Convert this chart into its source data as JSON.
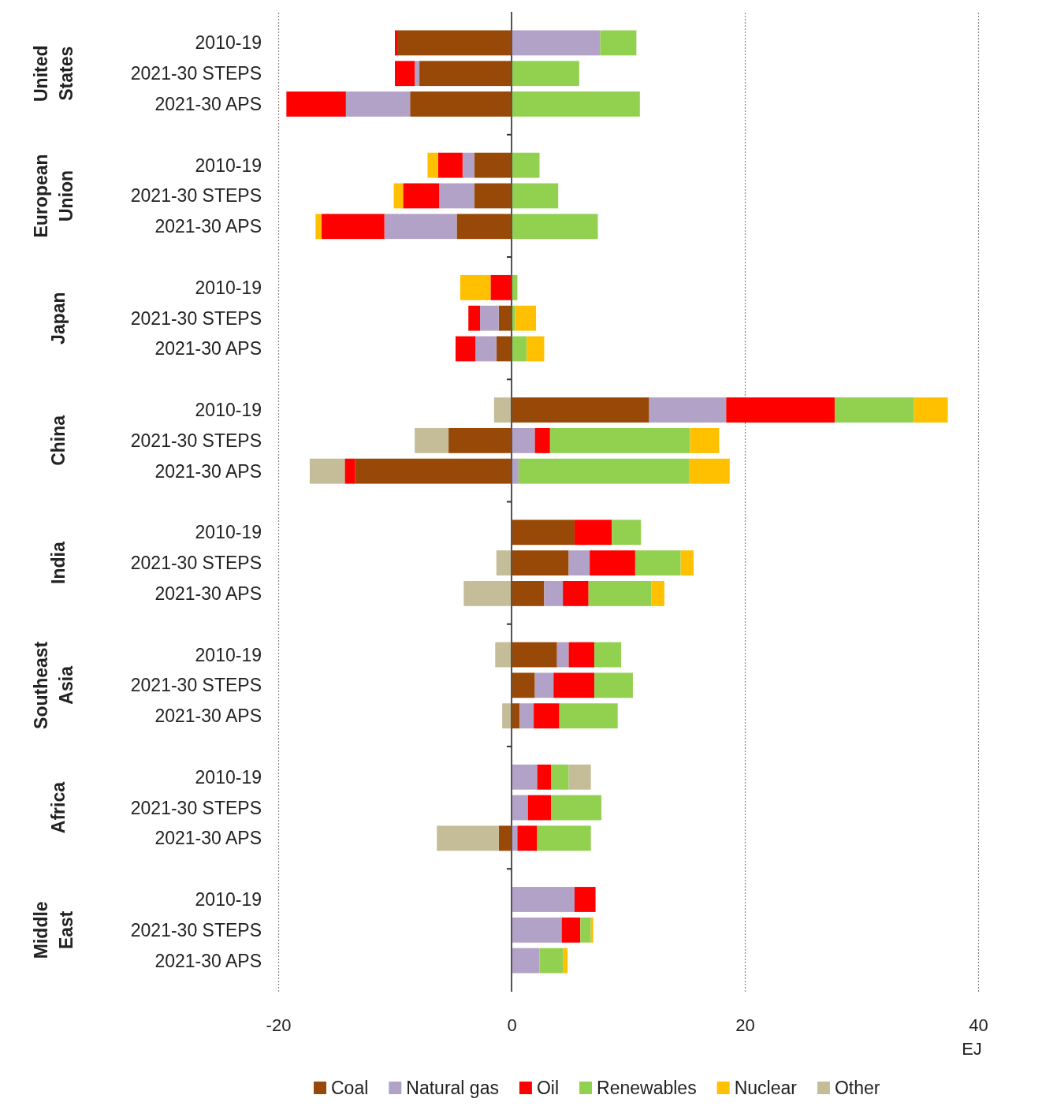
{
  "chart_data": {
    "type": "bar",
    "orientation": "horizontal",
    "stacked": true,
    "categories": [
      "2010-19",
      "2021-30 STEPS",
      "2021-30 APS",
      "2010-19",
      "2021-30 STEPS",
      "2021-30 APS",
      "2010-19",
      "2021-30 STEPS",
      "2021-30 APS",
      "2010-19",
      "2021-30 STEPS",
      "2021-30 APS",
      "2010-19",
      "2021-30 STEPS",
      "2021-30 APS",
      "2010-19",
      "2021-30 STEPS",
      "2021-30 APS",
      "2010-19",
      "2021-30 STEPS",
      "2021-30 APS",
      "2010-19",
      "2021-30 STEPS",
      "2021-30 APS"
    ],
    "series": [
      {
        "name": "Coal",
        "color": "#984807",
        "values": [
          -9.8,
          -7.9,
          -8.7,
          -3.2,
          -3.2,
          -4.7,
          null,
          -1.1,
          -1.3,
          11.8,
          -5.4,
          -13.4,
          5.4,
          4.9,
          2.8,
          3.9,
          2.0,
          0.7,
          null,
          null,
          -1.1,
          null,
          null,
          null
        ]
      },
      {
        "name": "Natural gas",
        "color": "#b3a2c7",
        "values": [
          7.6,
          -0.4,
          -5.5,
          -1.0,
          -3.0,
          -6.2,
          null,
          -1.6,
          -1.8,
          6.6,
          2.0,
          0.6,
          null,
          1.8,
          1.6,
          1.0,
          1.6,
          1.2,
          2.2,
          1.4,
          0.5,
          5.4,
          4.3,
          2.4
        ]
      },
      {
        "name": "Oil",
        "color": "#ff0000",
        "values": [
          -0.2,
          -1.7,
          -5.1,
          -2.1,
          -3.1,
          -5.4,
          -1.8,
          -1.0,
          -1.7,
          9.3,
          1.3,
          -0.9,
          3.2,
          3.9,
          2.2,
          2.2,
          3.5,
          2.2,
          1.2,
          2.0,
          1.7,
          1.8,
          1.6,
          null
        ]
      },
      {
        "name": "Renewables",
        "color": "#92d050",
        "values": [
          3.1,
          5.8,
          11.0,
          2.4,
          4.0,
          7.4,
          0.5,
          0.3,
          1.3,
          6.8,
          12.0,
          14.6,
          2.5,
          3.9,
          5.4,
          2.3,
          3.3,
          5.0,
          1.5,
          4.3,
          4.6,
          null,
          0.9,
          2.0
        ]
      },
      {
        "name": "Nuclear",
        "color": "#ffc000",
        "values": [
          null,
          null,
          null,
          -0.9,
          -0.8,
          -0.5,
          -2.6,
          1.8,
          1.5,
          2.9,
          2.5,
          3.5,
          null,
          1.1,
          1.1,
          null,
          null,
          null,
          null,
          null,
          null,
          null,
          0.2,
          0.4
        ]
      },
      {
        "name": "Other",
        "color": "#c4bd97",
        "values": [
          null,
          null,
          null,
          null,
          null,
          null,
          null,
          null,
          null,
          -1.5,
          -2.9,
          -3.0,
          null,
          -1.3,
          -4.1,
          -1.4,
          null,
          -0.8,
          1.9,
          null,
          -5.3,
          null,
          null,
          null
        ]
      }
    ],
    "annotations": [
      "United States",
      "European Union",
      "Japan",
      "China",
      "India",
      "Southeast Asia",
      "Africa",
      "Middle East"
    ],
    "xlabel": "EJ",
    "xlim": [
      -20,
      40
    ],
    "xticks": [
      -20,
      0,
      20,
      40
    ],
    "grid": "x",
    "legend": "bottom"
  }
}
